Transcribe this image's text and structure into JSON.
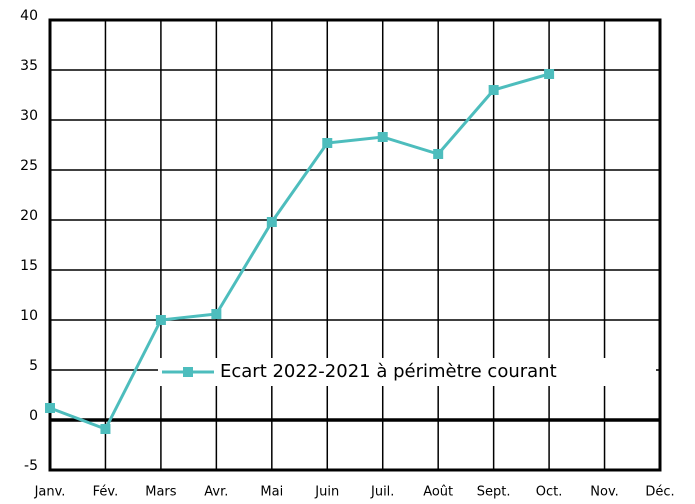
{
  "chart_data": {
    "type": "line",
    "categories": [
      "Janv.",
      "Fév.",
      "Mars",
      "Avr.",
      "Mai",
      "Juin",
      "Juil.",
      "Août",
      "Sept.",
      "Oct.",
      "Nov.",
      "Déc."
    ],
    "series": [
      {
        "name": "Ecart 2022-2021 à périmètre courant",
        "color": "#4dbdbd",
        "values": [
          1.2,
          -0.9,
          10,
          10.6,
          19.8,
          27.7,
          28.3,
          26.6,
          33,
          34.6,
          null,
          null
        ]
      }
    ],
    "ylim": [
      -5,
      40
    ],
    "yticks": [
      -5,
      0,
      5,
      10,
      15,
      20,
      25,
      30,
      35,
      40
    ],
    "grid": true
  }
}
